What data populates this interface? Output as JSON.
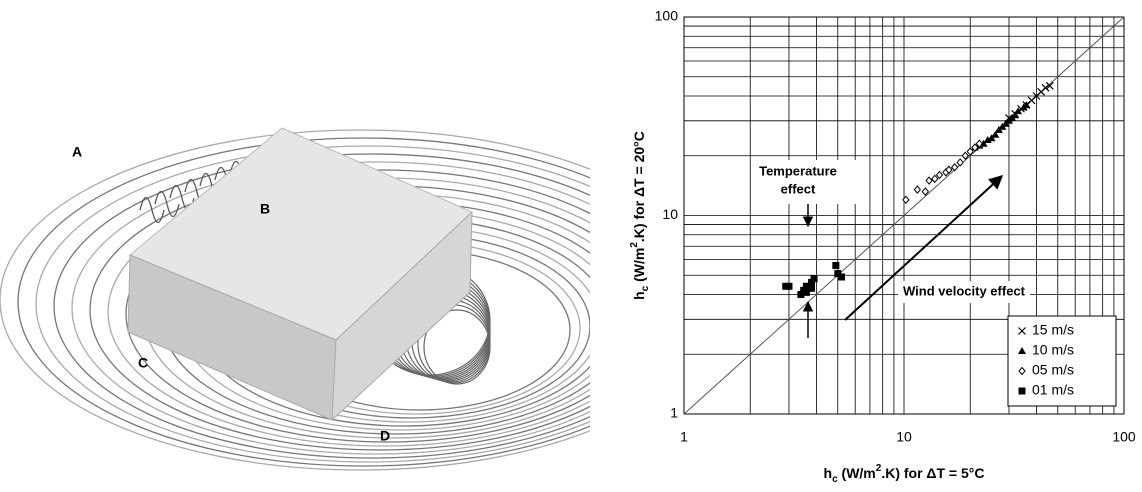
{
  "figure_labels": [
    "A",
    "B",
    "C",
    "D"
  ],
  "chart_data": {
    "type": "scatter",
    "log_scale": true,
    "grid": true,
    "diagonal": true,
    "legend": "lower right",
    "xlim": [
      1,
      100
    ],
    "ylim": [
      1,
      100
    ],
    "xticks": [
      1,
      10,
      100
    ],
    "yticks": [
      1,
      10,
      100
    ],
    "x_minor_ticks": [
      2,
      3,
      4,
      5,
      6,
      7,
      8,
      9,
      20,
      30,
      40,
      50,
      60,
      70,
      80,
      90
    ],
    "y_minor_ticks": [
      2,
      3,
      4,
      5,
      6,
      7,
      8,
      9,
      20,
      30,
      40,
      50,
      60,
      70,
      80,
      90
    ],
    "xlabel": [
      "h",
      "c",
      " (W/m",
      "2",
      ".K) for ΔT = 5°C"
    ],
    "ylabel": [
      "h",
      "c",
      " (W/m",
      "2",
      ".K) for ΔT = 20°C"
    ],
    "annotations": {
      "temperature": [
        "Temperature",
        "effect"
      ],
      "wind": "Wind velocity effect"
    },
    "series": [
      {
        "name": "15 m/s",
        "marker": "x",
        "color": "#000000",
        "x": [
          30,
          32,
          34,
          36,
          38,
          40,
          42,
          44,
          46
        ],
        "values": [
          31,
          32.5,
          34.5,
          36,
          38,
          40,
          42,
          44,
          45
        ]
      },
      {
        "name": "10 m/s",
        "marker": "triangle",
        "color": "#000000",
        "x": [
          21,
          22,
          23,
          24,
          25,
          26,
          27,
          28,
          29,
          30,
          31,
          32,
          33,
          35,
          36
        ],
        "values": [
          22,
          22.5,
          23,
          24,
          24.5,
          25.5,
          27,
          28,
          29,
          30,
          31,
          32,
          33.5,
          35,
          36
        ]
      },
      {
        "name": "05 m/s",
        "marker": "diamond",
        "color": "#000000",
        "x": [
          10.2,
          11.5,
          12.5,
          13,
          13.8,
          14.5,
          15.5,
          16,
          17,
          18,
          19,
          20,
          21,
          22
        ],
        "values": [
          12,
          13.5,
          13.2,
          15,
          15.3,
          16,
          16.5,
          17,
          17.5,
          18.5,
          20,
          21,
          22,
          23
        ]
      },
      {
        "name": "01 m/s",
        "marker": "square",
        "color": "#000000",
        "x": [
          2.9,
          3.0,
          3.4,
          3.5,
          3.6,
          3.6,
          3.8,
          3.8,
          3.9,
          4.9,
          5.0,
          5.2
        ],
        "values": [
          4.4,
          4.4,
          4.0,
          4.2,
          4.1,
          4.4,
          4.3,
          4.6,
          4.8,
          5.6,
          5.1,
          4.9
        ]
      }
    ]
  }
}
